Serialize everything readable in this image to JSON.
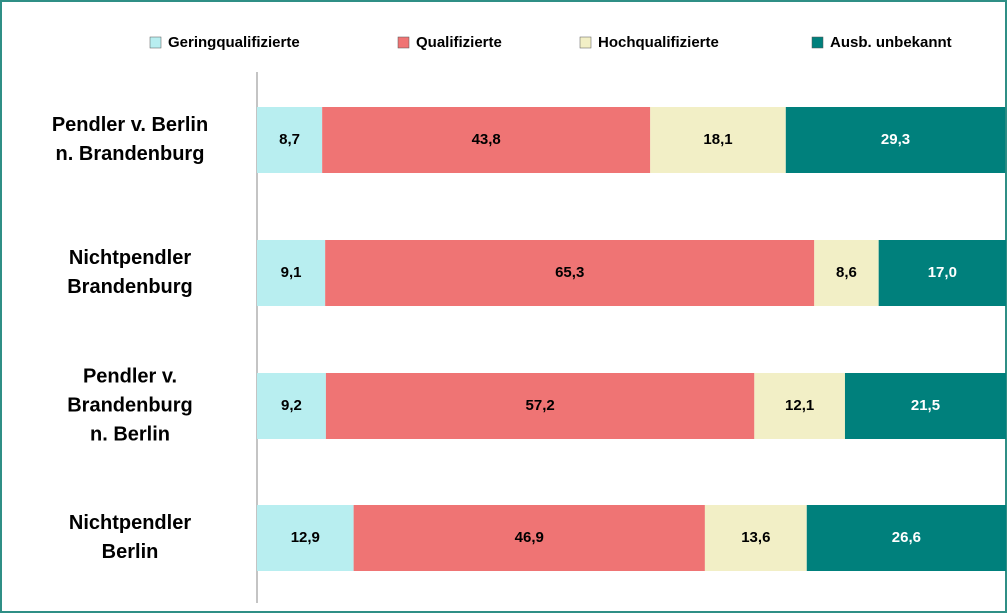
{
  "chart_data": {
    "type": "stacked_barh",
    "categories": [
      "Pendler v. Berlin\nn. Brandenburg",
      "Nichtpendler\nBrandenburg",
      "Pendler v.\nBrandenburg\nn. Berlin",
      "Nichtpendler\nBerlin"
    ],
    "series": [
      {
        "name": "Geringqualifizierte",
        "color": "#b8eef0",
        "values": [
          8.7,
          9.1,
          9.2,
          12.9
        ],
        "value_labels": [
          "8,7",
          "9,1",
          "9,2",
          "12,9"
        ]
      },
      {
        "name": "Qualifizierte",
        "color": "#ef7474",
        "values": [
          43.8,
          65.3,
          57.2,
          46.9
        ],
        "value_labels": [
          "43,8",
          "65,3",
          "57,2",
          "46,9"
        ]
      },
      {
        "name": "Hochqualifizierte",
        "color": "#f2efc6",
        "values": [
          18.1,
          8.6,
          12.1,
          13.6
        ],
        "value_labels": [
          "18,1",
          "8,6",
          "12,1",
          "13,6"
        ]
      },
      {
        "name": "Ausb. unbekannt",
        "color": "#00807c",
        "values": [
          29.3,
          17.0,
          21.5,
          26.6
        ],
        "value_labels": [
          "29,3",
          "17,0",
          "21,5",
          "26,6"
        ]
      }
    ],
    "xlim": [
      0,
      100
    ],
    "legend": "top"
  }
}
